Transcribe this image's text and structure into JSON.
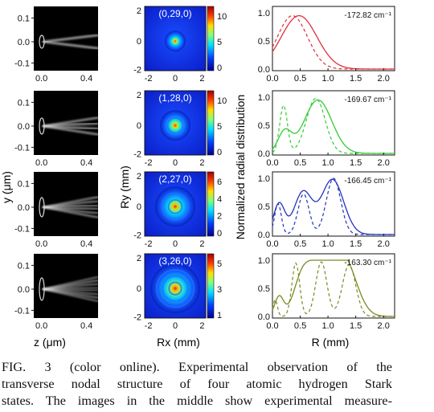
{
  "figure": {
    "y_axis_label": "y (μm)",
    "x_axis_label_z": "z (μm)",
    "ry_axis_label": "Ry (mm)",
    "rx_axis_label": "Rx (mm)",
    "radial_y_label": "Normalized radial distribution",
    "radial_x_label": "R (mm)",
    "rows": [
      {
        "state": "(0,29,0)",
        "energy": "-172.82 cm⁻¹",
        "colorbar": [
          "10",
          "5",
          "0"
        ],
        "color": "#e0303a"
      },
      {
        "state": "(1,28,0)",
        "energy": "-169.67 cm⁻¹",
        "colorbar": [
          "10",
          "5",
          "0"
        ],
        "color": "#33cc33"
      },
      {
        "state": "(2,27,0)",
        "energy": "-166.45 cm⁻¹",
        "colorbar": [
          "6",
          "4",
          "2",
          "0"
        ],
        "color": "#2233bb"
      },
      {
        "state": "(3,26,0)",
        "energy": "-163.30 cm⁻¹",
        "colorbar": [
          "5",
          "3",
          "1"
        ],
        "color": "#7a8a20"
      }
    ],
    "left_yticks": [
      "0.1",
      "0.0",
      "-0.1"
    ],
    "left_xticks": [
      "0.0",
      "0.4"
    ],
    "mid_yticks": [
      "2",
      "0",
      "-2"
    ],
    "mid_xticks": [
      "-2",
      "0",
      "2"
    ],
    "right_yticks": [
      "1.0",
      "0.5",
      "0.0"
    ],
    "right_xticks": [
      "0.0",
      "0.5",
      "1.0",
      "1.5",
      "2.0"
    ]
  },
  "caption": {
    "lines": [
      "FIG. 3 (color online). Experimental observation of the",
      "transverse nodal structure of four atomic hydrogen Stark",
      "states. The images in the middle show experimental measure-"
    ]
  }
}
